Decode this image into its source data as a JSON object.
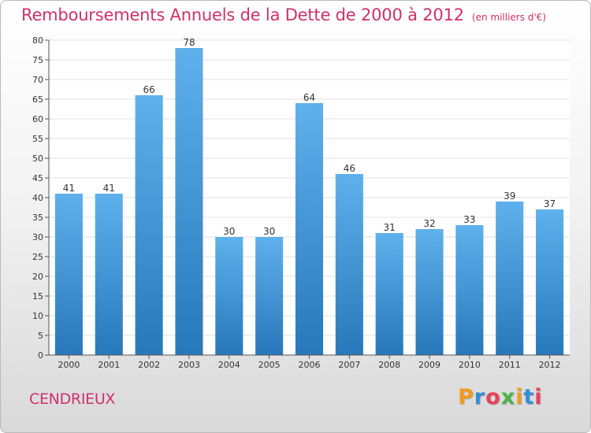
{
  "header": {
    "title": "Remboursements Annuels de la Dette de 2000 à 2012",
    "unit": "(en milliers d'€)"
  },
  "footer": {
    "commune": "CENDRIEUX",
    "logo_text": "Proxiti",
    "logo_colors": [
      "#f39b1f",
      "#2f8fd8",
      "#e8425a",
      "#4bb54a",
      "#f39b1f",
      "#2f8fd8",
      "#e8425a"
    ]
  },
  "colors": {
    "bar_top": "#5eb1ec",
    "bar_bottom": "#2778ba",
    "title": "#d0306a",
    "axis": "#555555",
    "grid": "#e2e2e2"
  },
  "chart_data": {
    "type": "bar",
    "title": "Remboursements Annuels de la Dette de 2000 à 2012",
    "xlabel": "",
    "ylabel": "",
    "categories": [
      "2000",
      "2001",
      "2002",
      "2003",
      "2004",
      "2005",
      "2006",
      "2007",
      "2008",
      "2009",
      "2010",
      "2011",
      "2012"
    ],
    "values": [
      41,
      41,
      66,
      78,
      30,
      30,
      64,
      46,
      31,
      32,
      33,
      39,
      37
    ],
    "ylim": [
      0,
      80
    ],
    "yticks": [
      0,
      5,
      10,
      15,
      20,
      25,
      30,
      35,
      40,
      45,
      50,
      55,
      60,
      65,
      70,
      75,
      80
    ],
    "grid": "horizontal",
    "data_labels": true
  }
}
